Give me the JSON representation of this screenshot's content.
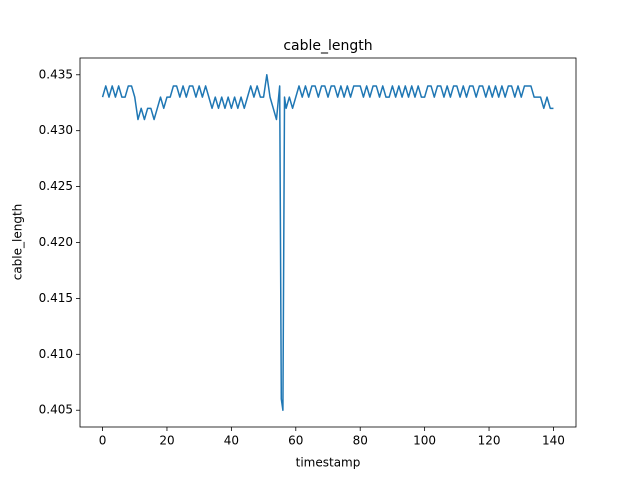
{
  "chart_data": {
    "type": "line",
    "title": "cable_length",
    "x_label": "timestamp",
    "y_label": "cable_length",
    "color": "#1f77b4",
    "x": [
      0,
      1,
      2,
      3,
      4,
      5,
      6,
      7,
      8,
      9,
      10,
      11,
      12,
      13,
      14,
      15,
      16,
      17,
      18,
      19,
      20,
      21,
      22,
      23,
      24,
      25,
      26,
      27,
      28,
      29,
      30,
      31,
      32,
      33,
      34,
      35,
      36,
      37,
      38,
      39,
      40,
      41,
      42,
      43,
      44,
      45,
      46,
      47,
      48,
      49,
      50,
      51,
      52,
      53,
      54,
      55,
      55.5,
      56,
      56.5,
      57,
      58,
      59,
      60,
      61,
      62,
      63,
      64,
      65,
      66,
      67,
      68,
      69,
      70,
      71,
      72,
      73,
      74,
      75,
      76,
      77,
      78,
      79,
      80,
      81,
      82,
      83,
      84,
      85,
      86,
      87,
      88,
      89,
      90,
      91,
      92,
      93,
      94,
      95,
      96,
      97,
      98,
      99,
      100,
      101,
      102,
      103,
      104,
      105,
      106,
      107,
      108,
      109,
      110,
      111,
      112,
      113,
      114,
      115,
      116,
      117,
      118,
      119,
      120,
      121,
      122,
      123,
      124,
      125,
      126,
      127,
      128,
      129,
      130,
      131,
      132,
      133,
      134,
      135,
      136,
      137,
      138,
      139,
      140
    ],
    "values": [
      0.433,
      0.434,
      0.433,
      0.434,
      0.433,
      0.434,
      0.433,
      0.433,
      0.434,
      0.434,
      0.433,
      0.431,
      0.432,
      0.431,
      0.432,
      0.432,
      0.431,
      0.432,
      0.433,
      0.432,
      0.433,
      0.433,
      0.434,
      0.434,
      0.433,
      0.434,
      0.433,
      0.434,
      0.434,
      0.433,
      0.434,
      0.433,
      0.434,
      0.433,
      0.432,
      0.433,
      0.432,
      0.433,
      0.432,
      0.433,
      0.432,
      0.433,
      0.432,
      0.433,
      0.432,
      0.433,
      0.434,
      0.433,
      0.434,
      0.433,
      0.433,
      0.435,
      0.433,
      0.432,
      0.431,
      0.434,
      0.406,
      0.405,
      0.433,
      0.432,
      0.433,
      0.432,
      0.433,
      0.434,
      0.433,
      0.434,
      0.433,
      0.434,
      0.434,
      0.433,
      0.434,
      0.434,
      0.433,
      0.434,
      0.434,
      0.433,
      0.434,
      0.433,
      0.434,
      0.433,
      0.434,
      0.434,
      0.434,
      0.433,
      0.434,
      0.433,
      0.434,
      0.434,
      0.433,
      0.434,
      0.433,
      0.433,
      0.434,
      0.433,
      0.434,
      0.433,
      0.434,
      0.433,
      0.434,
      0.433,
      0.434,
      0.433,
      0.433,
      0.434,
      0.434,
      0.433,
      0.434,
      0.434,
      0.433,
      0.434,
      0.433,
      0.434,
      0.434,
      0.433,
      0.434,
      0.433,
      0.434,
      0.434,
      0.433,
      0.434,
      0.434,
      0.433,
      0.434,
      0.433,
      0.434,
      0.433,
      0.434,
      0.433,
      0.434,
      0.434,
      0.433,
      0.434,
      0.433,
      0.434,
      0.434,
      0.434,
      0.433,
      0.433,
      0.433,
      0.432,
      0.433,
      0.432,
      0.432
    ],
    "xlim": [
      -7,
      147
    ],
    "ylim": [
      0.4035,
      0.4365
    ],
    "xticks": [
      0,
      20,
      40,
      60,
      80,
      100,
      120,
      140
    ],
    "yticks": [
      0.405,
      {
        "value": 0.41,
        "label": "0.410"
      },
      0.415,
      {
        "value": 0.42,
        "label": "0.420"
      },
      0.425,
      {
        "value": 0.43,
        "label": "0.430"
      },
      0.435
    ],
    "grid": false
  }
}
